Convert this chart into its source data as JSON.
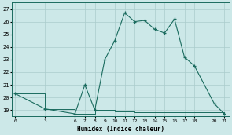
{
  "x": [
    0,
    3,
    6,
    7,
    8,
    9,
    10,
    11,
    12,
    13,
    14,
    15,
    16,
    17,
    18,
    20,
    21
  ],
  "y": [
    20.3,
    19.1,
    18.7,
    21.0,
    19.0,
    23.0,
    24.5,
    26.7,
    26.0,
    26.1,
    25.4,
    25.1,
    26.2,
    23.2,
    22.5,
    19.5,
    18.7
  ],
  "x_step": [
    0,
    3,
    6,
    7,
    8,
    9,
    10,
    11,
    12,
    13,
    14,
    15,
    16,
    17,
    18,
    20,
    21
  ],
  "y_step": [
    20.3,
    19.1,
    18.7,
    18.7,
    19.0,
    19.0,
    18.9,
    18.9,
    18.85,
    18.85,
    18.85,
    18.85,
    18.85,
    18.85,
    18.85,
    18.8,
    18.7
  ],
  "xticks": [
    0,
    3,
    6,
    7,
    8,
    9,
    10,
    11,
    12,
    13,
    14,
    15,
    16,
    17,
    18,
    20,
    21
  ],
  "yticks": [
    19,
    20,
    21,
    22,
    23,
    24,
    25,
    26,
    27
  ],
  "xlabel": "Humidex (Indice chaleur)",
  "ylim": [
    18.5,
    27.5
  ],
  "xlim": [
    -0.3,
    21.5
  ],
  "line_color": "#1a6b5e",
  "bg_color": "#cce8e8",
  "grid_color": "#aacccc"
}
